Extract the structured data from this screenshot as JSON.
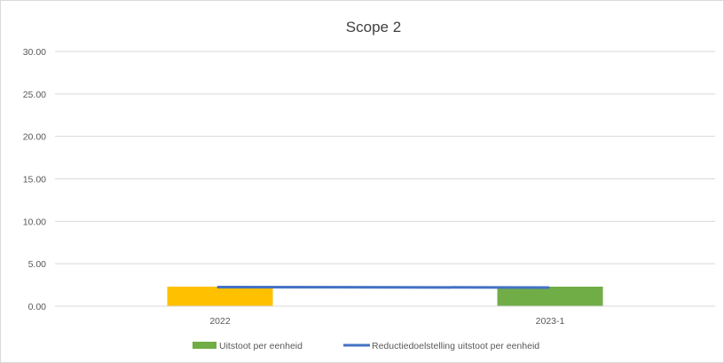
{
  "chart_data": {
    "type": "bar",
    "title": "Scope 2",
    "categories": [
      "2022",
      "2023-1"
    ],
    "series": [
      {
        "name": "Uitstoot per eenheid",
        "kind": "bar",
        "values": [
          2.3,
          2.3
        ],
        "colors": [
          "#ffc000",
          "#70ad47"
        ],
        "legend_color": "#70ad47"
      },
      {
        "name": "Reductiedoelstelling uitstoot per eenheid",
        "kind": "line",
        "values": [
          2.25,
          2.2
        ],
        "color": "#4472c4"
      }
    ],
    "ylim": [
      0,
      30
    ],
    "yticks": [
      "0.00",
      "5.00",
      "10.00",
      "15.00",
      "20.00",
      "25.00",
      "30.00"
    ],
    "grid": true,
    "legend_position": "bottom"
  }
}
